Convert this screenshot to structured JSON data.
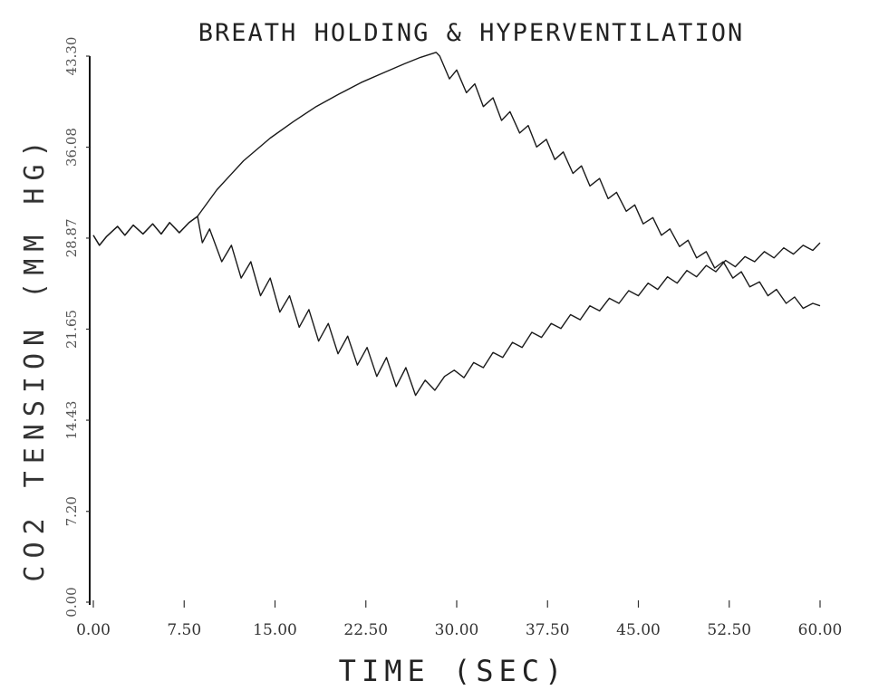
{
  "chart_data": {
    "type": "line",
    "title": "BREATH HOLDING & HYPERVENTILATION",
    "xlabel": "TIME (SEC)",
    "ylabel": "CO2 TENSION (MM HG)",
    "xlim": [
      0,
      60
    ],
    "ylim": [
      0,
      43.3
    ],
    "x_ticks": [
      0,
      7.5,
      15,
      22.5,
      30,
      37.5,
      45,
      52.5,
      60
    ],
    "x_tick_labels": [
      "0.00",
      "7.50",
      "15.00",
      "22.50",
      "30.00",
      "37.50",
      "45.00",
      "52.50",
      "60.00"
    ],
    "y_ticks": [
      0,
      7.2,
      14.43,
      21.65,
      28.87,
      36.08,
      43.3
    ],
    "y_tick_labels": [
      "0.00",
      "7.20",
      "14.43",
      "21.65",
      "28.87",
      "36.08",
      "43.30"
    ],
    "grid": false,
    "series": [
      {
        "x": [
          0,
          0.5,
          1.1,
          2.0,
          2.6,
          3.3,
          4.1,
          4.9,
          5.6,
          6.3,
          7.1,
          7.9,
          8.6,
          10.2,
          12.4,
          14.6,
          16.5,
          18.4,
          20.3,
          22.1,
          24.0,
          25.7,
          27.0,
          28.3,
          28.6,
          29.4,
          30.0,
          30.8,
          31.5,
          32.2,
          33.0,
          33.7,
          34.4,
          35.2,
          35.9,
          36.6,
          37.4,
          38.1,
          38.8,
          39.6,
          40.3,
          41.0,
          41.8,
          42.5,
          43.2,
          44.0,
          44.7,
          45.4,
          46.2,
          46.9,
          47.6,
          48.4,
          49.1,
          49.8,
          50.6,
          51.3,
          52.0,
          52.8,
          53.5,
          54.2,
          55.0,
          55.7,
          56.4,
          57.2,
          57.9,
          58.6,
          59.4,
          60.0
        ],
        "y": [
          29.1,
          28.3,
          29.0,
          29.8,
          29.1,
          29.9,
          29.2,
          30.0,
          29.2,
          30.1,
          29.3,
          30.1,
          30.6,
          32.7,
          35.0,
          36.8,
          38.1,
          39.3,
          40.3,
          41.2,
          42.0,
          42.7,
          43.2,
          43.6,
          43.3,
          41.5,
          42.2,
          40.4,
          41.1,
          39.3,
          40.0,
          38.2,
          38.9,
          37.2,
          37.8,
          36.1,
          36.7,
          35.1,
          35.7,
          34.0,
          34.6,
          33.0,
          33.6,
          32.0,
          32.5,
          31.0,
          31.5,
          30.0,
          30.5,
          29.1,
          29.6,
          28.2,
          28.7,
          27.3,
          27.8,
          26.5,
          27.0,
          25.7,
          26.2,
          25.0,
          25.4,
          24.3,
          24.8,
          23.7,
          24.2,
          23.3,
          23.7,
          23.5
        ]
      },
      {
        "x": [
          0,
          0.5,
          1.1,
          2.0,
          2.6,
          3.3,
          4.1,
          4.9,
          5.6,
          6.3,
          7.1,
          7.9,
          8.6,
          9.0,
          9.6,
          10.6,
          11.4,
          12.2,
          13.0,
          13.8,
          14.6,
          15.4,
          16.2,
          17.0,
          17.8,
          18.6,
          19.4,
          20.2,
          21.0,
          21.8,
          22.6,
          23.4,
          24.2,
          25.0,
          25.8,
          26.6,
          27.4,
          28.2,
          29.0,
          29.8,
          30.6,
          31.4,
          32.2,
          33.0,
          33.8,
          34.6,
          35.4,
          36.2,
          37.0,
          37.8,
          38.6,
          39.4,
          40.2,
          41.0,
          41.8,
          42.6,
          43.4,
          44.2,
          45.0,
          45.8,
          46.6,
          47.4,
          48.2,
          49.0,
          49.8,
          50.6,
          51.4,
          52.2,
          53.0,
          53.8,
          54.6,
          55.4,
          56.2,
          57.0,
          57.8,
          58.6,
          59.4,
          60.0
        ],
        "y": [
          29.1,
          28.3,
          29.0,
          29.8,
          29.1,
          29.9,
          29.2,
          30.0,
          29.2,
          30.1,
          29.3,
          30.1,
          30.6,
          28.5,
          29.6,
          27.0,
          28.3,
          25.7,
          27.0,
          24.3,
          25.7,
          23.0,
          24.3,
          21.8,
          23.2,
          20.7,
          22.1,
          19.7,
          21.1,
          18.8,
          20.2,
          17.9,
          19.4,
          17.1,
          18.6,
          16.4,
          17.6,
          16.8,
          17.9,
          18.4,
          17.8,
          19.0,
          18.6,
          19.8,
          19.4,
          20.6,
          20.2,
          21.4,
          21.0,
          22.1,
          21.7,
          22.8,
          22.4,
          23.5,
          23.1,
          24.1,
          23.7,
          24.7,
          24.3,
          25.3,
          24.8,
          25.8,
          25.3,
          26.3,
          25.8,
          26.7,
          26.2,
          27.1,
          26.6,
          27.4,
          27.0,
          27.8,
          27.3,
          28.1,
          27.6,
          28.3,
          27.9,
          28.5
        ]
      }
    ]
  }
}
